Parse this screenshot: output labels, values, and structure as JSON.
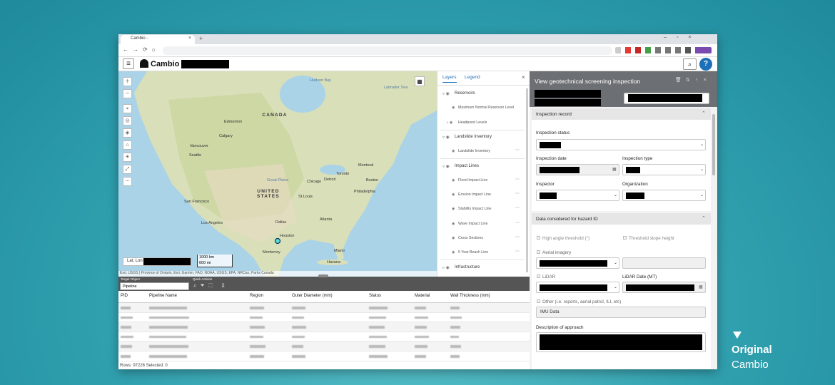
{
  "browser": {
    "tab_title": "Cambio -"
  },
  "app": {
    "name": "Cambio"
  },
  "map": {
    "labels": [
      "CANADA",
      "Edmonton",
      "Calgary",
      "Vancouver",
      "Seattle",
      "Great Plains",
      "UNITED STATES",
      "San Francisco",
      "Los Angeles",
      "Chicago",
      "Detroit",
      "Toronto",
      "Montreal",
      "Boston",
      "Philadelphia",
      "St Louis",
      "Atlanta",
      "Dallas",
      "Houston",
      "Monterrey",
      "Miami",
      "Havana",
      "Hudson Bay",
      "Labrador Sea"
    ],
    "attribution": "Esri, USGS | Province of Ontario, Esri, Garmin, FAO, NOAA, USGS, EPA, NRCan, Parks Canada",
    "coordinates_label": "Lat, Lon",
    "scale": [
      "1000 km",
      "600 mi"
    ]
  },
  "layers_panel": {
    "tabs": [
      "Layers",
      "Legend"
    ],
    "groups": [
      {
        "name": "Reservoirs",
        "items": [
          "Maximum Normal Reservoir Level",
          "Headpond Levels"
        ]
      },
      {
        "name": "Landslide Inventory",
        "items": [
          "Landslide Inventory"
        ]
      },
      {
        "name": "Impact Lines",
        "items": [
          "Flood Impact Line",
          "Erosion Impact Line",
          "Stability Impact Line",
          "Wave Impact Line",
          "Cross Sections",
          "5 Year Beach Line"
        ]
      },
      {
        "name": "Infrastructure",
        "items": []
      }
    ]
  },
  "table": {
    "target_object_label": "Target Object",
    "target_object": "Pipeline",
    "quick_actions_label": "Quick Actions",
    "columns": [
      "PID",
      "Pipeline Name",
      "Region",
      "Outer Diameter (mm)",
      "Status",
      "Material",
      "Wall Thickness (mm)"
    ],
    "footer": "Rows: 97226 Selected: 0"
  },
  "inspection_panel": {
    "title": "View geotechnical screening inspection",
    "sections": [
      {
        "title": "Inspection record",
        "fields": [
          "Inspection status",
          "Inspection date",
          "Inspection type",
          "Inspector",
          "Organization"
        ]
      },
      {
        "title": "Data considered for hazard ID",
        "fields": [
          "High angle threshold (°)",
          "Threshold slope height",
          "Aerial imagery",
          "LiDAR",
          "LiDAR Date (MT)",
          "Other (i.e. reports, aerial patrol, ILI, etc)",
          "Description of approach"
        ],
        "other_value": "IMU Data"
      }
    ]
  },
  "overlay": {
    "title": "Original",
    "subtitle": "Cambio"
  }
}
